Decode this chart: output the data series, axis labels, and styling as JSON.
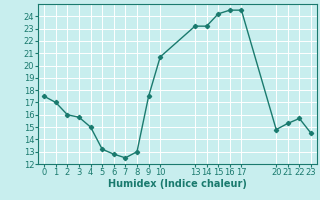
{
  "x": [
    0,
    1,
    2,
    3,
    4,
    5,
    6,
    7,
    8,
    9,
    10,
    13,
    14,
    15,
    16,
    17,
    20,
    21,
    22,
    23
  ],
  "y": [
    17.5,
    17.0,
    16.0,
    15.8,
    15.0,
    13.2,
    12.8,
    12.5,
    13.0,
    17.5,
    20.7,
    23.2,
    23.2,
    24.2,
    24.5,
    24.5,
    14.8,
    15.3,
    15.7,
    14.5
  ],
  "xlim": [
    -0.5,
    23.5
  ],
  "ylim": [
    12,
    25
  ],
  "xticks": [
    0,
    1,
    2,
    3,
    4,
    5,
    6,
    7,
    8,
    9,
    10,
    13,
    14,
    15,
    16,
    17,
    20,
    21,
    22,
    23
  ],
  "yticks": [
    12,
    13,
    14,
    15,
    16,
    17,
    18,
    19,
    20,
    21,
    22,
    23,
    24
  ],
  "xlabel": "Humidex (Indice chaleur)",
  "line_color": "#1a7a6e",
  "bg_color": "#c8eeee",
  "grid_color": "#ffffff",
  "marker": "D",
  "marker_size": 2.2,
  "line_width": 1.0,
  "xlabel_fontsize": 7,
  "tick_fontsize": 6,
  "title": ""
}
